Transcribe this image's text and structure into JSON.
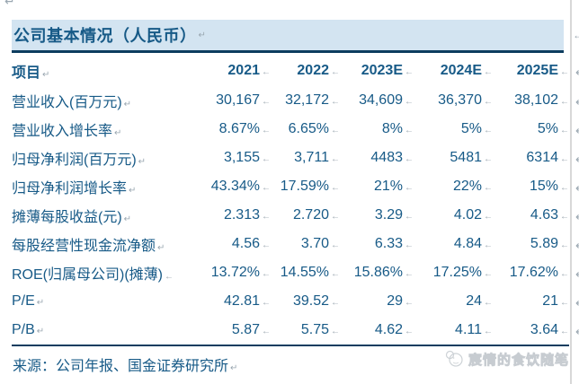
{
  "title": {
    "text": "公司基本情况（人民币）"
  },
  "table": {
    "header": [
      "项目",
      "2021",
      "2022",
      "2023E",
      "2024E",
      "2025E"
    ],
    "rows": [
      {
        "label": "营业收入(百万元)",
        "label_mark": "paragraph",
        "values": [
          "30,167",
          "32,172",
          "34,609",
          "36,370",
          "38,102"
        ]
      },
      {
        "label": "营业收入增长率",
        "label_mark": "paragraph",
        "values": [
          "8.67%",
          "6.65%",
          "8%",
          "5%",
          "5%"
        ]
      },
      {
        "label": "归母净利润(百万元)",
        "label_mark": "paragraph",
        "values": [
          "3,155",
          "3,711",
          "4483",
          "5481",
          "6314"
        ]
      },
      {
        "label": "归母净利润增长率",
        "label_mark": "paragraph",
        "values": [
          "43.34%",
          "17.59%",
          "21%",
          "22%",
          "15%"
        ]
      },
      {
        "label": "摊薄每股收益(元)",
        "label_mark": "paragraph",
        "values": [
          "2.313",
          "2.720",
          "3.29",
          "4.02",
          "4.63"
        ]
      },
      {
        "label": "每股经营性现金流净额",
        "label_mark": "paragraph",
        "values": [
          "4.56",
          "3.70",
          "6.33",
          "4.84",
          "5.89"
        ]
      },
      {
        "label": "ROE(归属母公司)(摊薄)",
        "label_mark": "cell",
        "values": [
          "13.72%",
          "14.55%",
          "15.86%",
          "17.25%",
          "17.62%"
        ]
      },
      {
        "label": "P/E",
        "label_mark": "paragraph",
        "values": [
          "42.81",
          "39.52",
          "29",
          "24",
          "21"
        ]
      },
      {
        "label": "P/B",
        "label_mark": "paragraph",
        "values": [
          "5.87",
          "5.75",
          "4.62",
          "4.11",
          "3.64"
        ]
      }
    ]
  },
  "footer": {
    "source": "来源：公司年报、国金证券研究所"
  },
  "watermark": {
    "text": "宸情的食饮随笔"
  },
  "marks": {
    "paragraph": "↵",
    "cell": "←",
    "row_end": "↵"
  },
  "colors": {
    "text_blue": "#175a87",
    "rule_dark": "#0d3d5f",
    "header_bg": "#d3e4f1",
    "mark_gray": "#9aa7b1",
    "watermark_gray": "#c7ccd1"
  }
}
